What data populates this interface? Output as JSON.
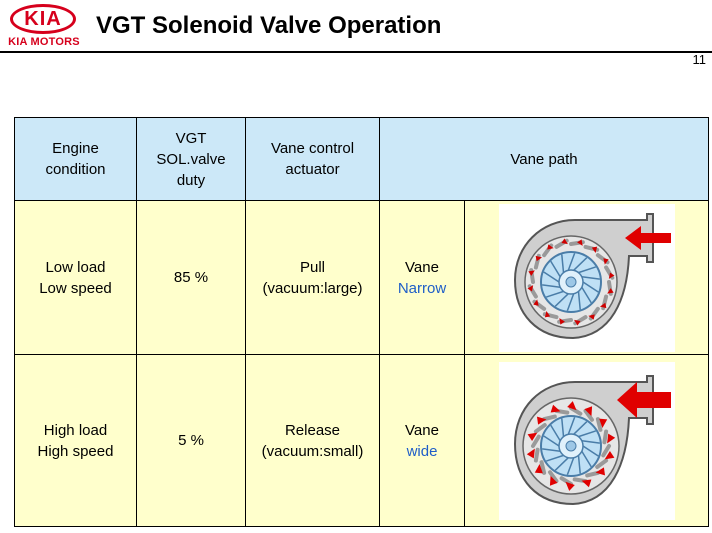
{
  "header": {
    "logo_text": "KIA",
    "logo_subtext": "KIA MOTORS",
    "title": "VGT Solenoid Valve Operation",
    "page_number": "11"
  },
  "table": {
    "headers": [
      "Engine condition",
      "VGT SOL.valve duty",
      "Vane control actuator",
      "Vane path"
    ],
    "header_lines": {
      "engine": [
        "Engine",
        "condition"
      ],
      "duty": [
        "VGT",
        "SOL.valve",
        "duty"
      ],
      "actuator": [
        "Vane control",
        "actuator"
      ],
      "path": "Vane path"
    },
    "rows": [
      {
        "condition": [
          "Low load",
          "Low speed"
        ],
        "duty": "85 %",
        "actuator": [
          "Pull",
          "(vacuum:large)"
        ],
        "vane_label": "Vane",
        "vane_state": "Narrow",
        "diagram": "turbo-vanes-narrow"
      },
      {
        "condition": [
          "High load",
          "High speed"
        ],
        "duty": "5 %",
        "actuator": [
          "Release",
          "(vacuum:small)"
        ],
        "vane_label": "Vane",
        "vane_state": "wide",
        "diagram": "turbo-vanes-wide"
      }
    ]
  },
  "colors": {
    "header_bg": "#cce8f8",
    "cell_bg": "#ffffcc",
    "state_text": "#1f5ec8",
    "logo_red": "#d6001c",
    "flow_arrow": "#e00000"
  }
}
